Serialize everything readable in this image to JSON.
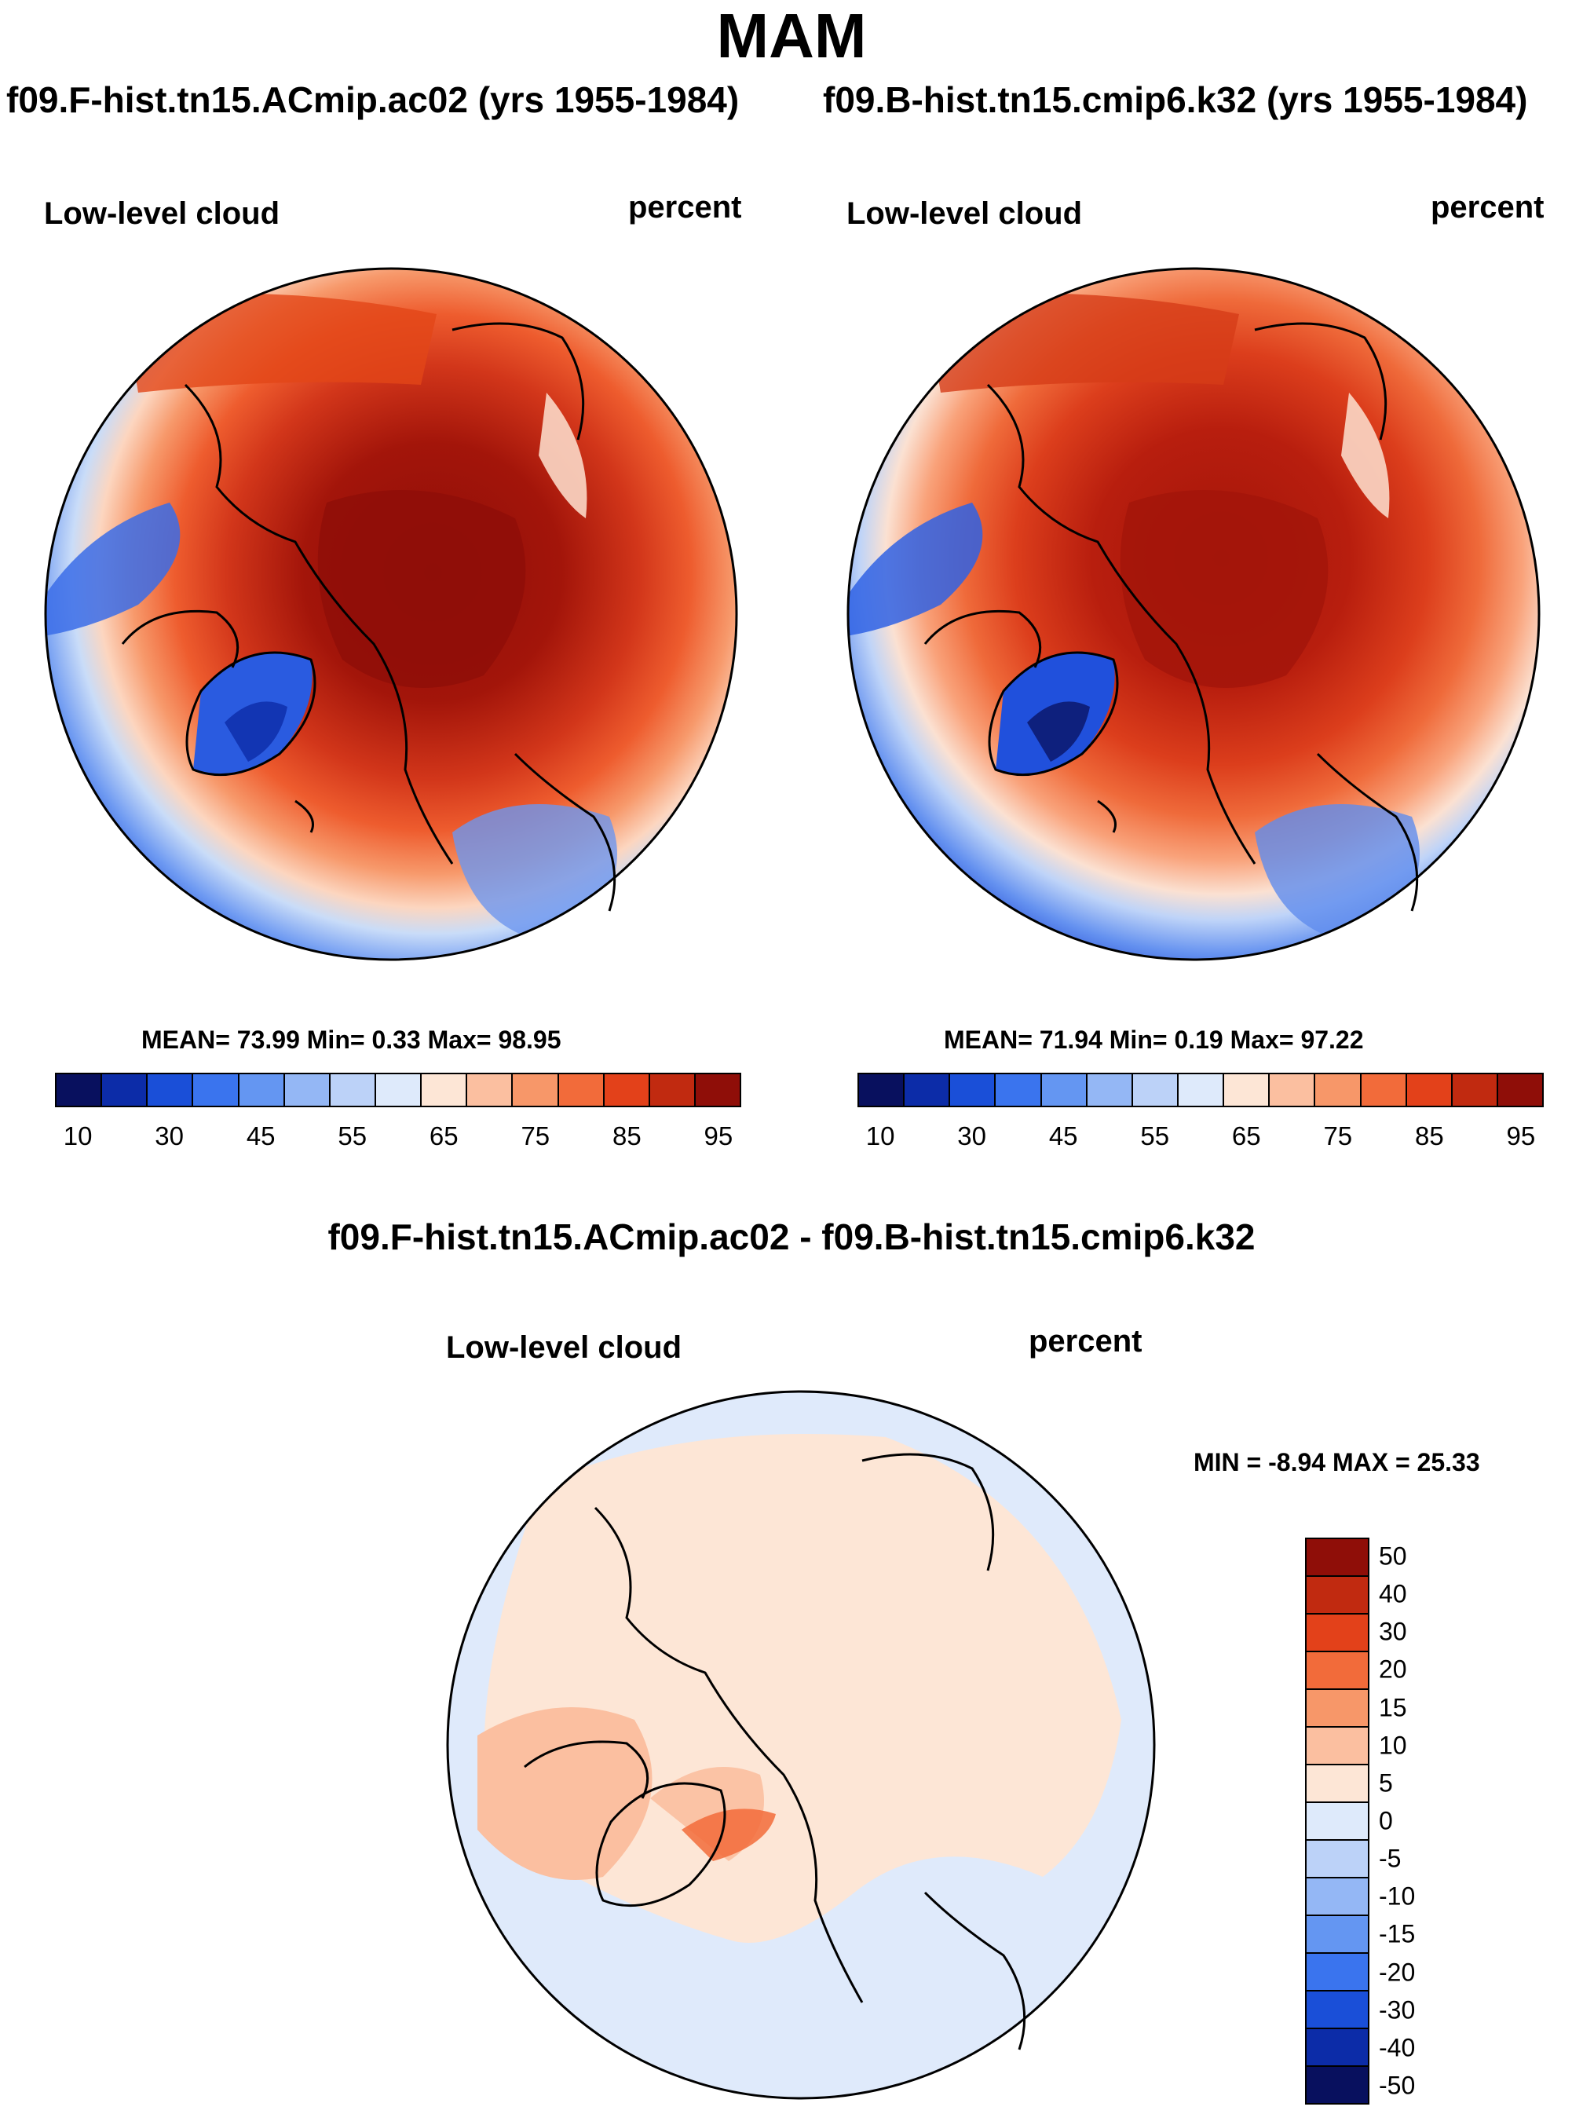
{
  "figure": {
    "season": "MAM",
    "diff_title": "f09.F-hist.tn15.ACmip.ac02 - f09.B-hist.tn15.cmip6.k32"
  },
  "panels": [
    {
      "run_title": "f09.F-hist.tn15.ACmip.ac02 (yrs 1955-1984)",
      "variable": "Low-level cloud",
      "units": "percent",
      "stats_text": "MEAN=  73.99  Min=   0.33  Max=  98.95",
      "mean": 73.99,
      "min": 0.33,
      "max": 98.95
    },
    {
      "run_title": "f09.B-hist.tn15.cmip6.k32 (yrs 1955-1984)",
      "variable": "Low-level cloud",
      "units": "percent",
      "stats_text": "MEAN=  71.94  Min=   0.19  Max=  97.22",
      "mean": 71.94,
      "min": 0.19,
      "max": 97.22
    },
    {
      "variable": "Low-level cloud",
      "units": "percent",
      "stats_text": "MIN =  -8.94 MAX =  25.33",
      "min": -8.94,
      "max": 25.33
    }
  ],
  "colorbar_abs": {
    "tick_labels": [
      "10",
      "30",
      "45",
      "55",
      "65",
      "75",
      "85",
      "95"
    ],
    "colors": [
      "#08105e",
      "#0c2ca8",
      "#1a4fd8",
      "#3a74ee",
      "#6496f2",
      "#94b7f5",
      "#bcd2f8",
      "#deeafb",
      "#fde6d6",
      "#fbbfa0",
      "#f79769",
      "#f26b3a",
      "#e3411a",
      "#c12a10",
      "#8f0e08"
    ]
  },
  "colorbar_diff": {
    "tick_labels": [
      "50",
      "40",
      "30",
      "20",
      "15",
      "10",
      "5",
      "0",
      "-5",
      "-10",
      "-15",
      "-20",
      "-30",
      "-40",
      "-50"
    ],
    "colors": [
      "#8f0e08",
      "#c12a10",
      "#e3411a",
      "#f26b3a",
      "#f79769",
      "#fbbfa0",
      "#fde6d6",
      "#deeafb",
      "#bcd2f8",
      "#94b7f5",
      "#6496f2",
      "#3a74ee",
      "#1a4fd8",
      "#0c2ca8",
      "#08105e"
    ]
  }
}
